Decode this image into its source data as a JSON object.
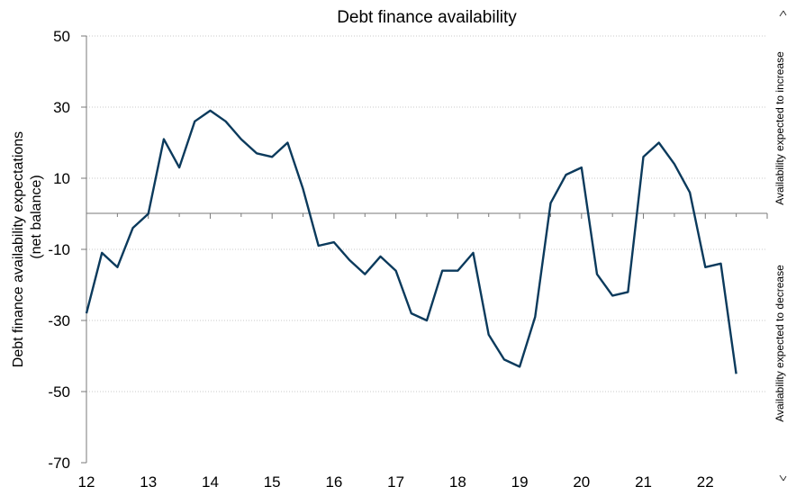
{
  "chart_data": {
    "type": "line",
    "title": "Debt finance availability",
    "ylabel_lines": [
      "Debt finance availability expectations",
      "(net balance)"
    ],
    "right_labels": {
      "upper": "Availability expected to increase",
      "lower": "Availability expected to decrease"
    },
    "ylim": [
      -70,
      50
    ],
    "yticks": [
      50,
      30,
      10,
      -10,
      -30,
      -50,
      -70
    ],
    "xlim": [
      12,
      23
    ],
    "xticks": [
      12,
      13,
      14,
      15,
      16,
      17,
      18,
      19,
      20,
      21,
      22
    ],
    "grid": true,
    "series": [
      {
        "color": "#0b3a5c",
        "x": [
          12.0,
          12.25,
          12.5,
          12.75,
          13.0,
          13.25,
          13.5,
          13.75,
          14.0,
          14.25,
          14.5,
          14.75,
          15.0,
          15.25,
          15.5,
          15.75,
          16.0,
          16.25,
          16.5,
          16.75,
          17.0,
          17.25,
          17.5,
          17.75,
          18.0,
          18.25,
          18.5,
          18.75,
          19.0,
          19.25,
          19.5,
          19.75,
          20.0,
          20.25,
          20.5,
          20.75,
          21.0,
          21.25,
          21.5,
          21.75,
          22.0,
          22.25,
          22.5
        ],
        "y": [
          -28,
          -11,
          -15,
          -4,
          0,
          21,
          13,
          26,
          29,
          26,
          21,
          17,
          16,
          20,
          7,
          -9,
          -8,
          -13,
          -17,
          -12,
          -16,
          -28,
          -30,
          -16,
          -16,
          -11,
          -34,
          -41,
          -43,
          -29,
          3,
          11,
          13,
          -17,
          -23,
          -22,
          16,
          20,
          14,
          6,
          -15,
          -14,
          -45
        ]
      }
    ]
  }
}
